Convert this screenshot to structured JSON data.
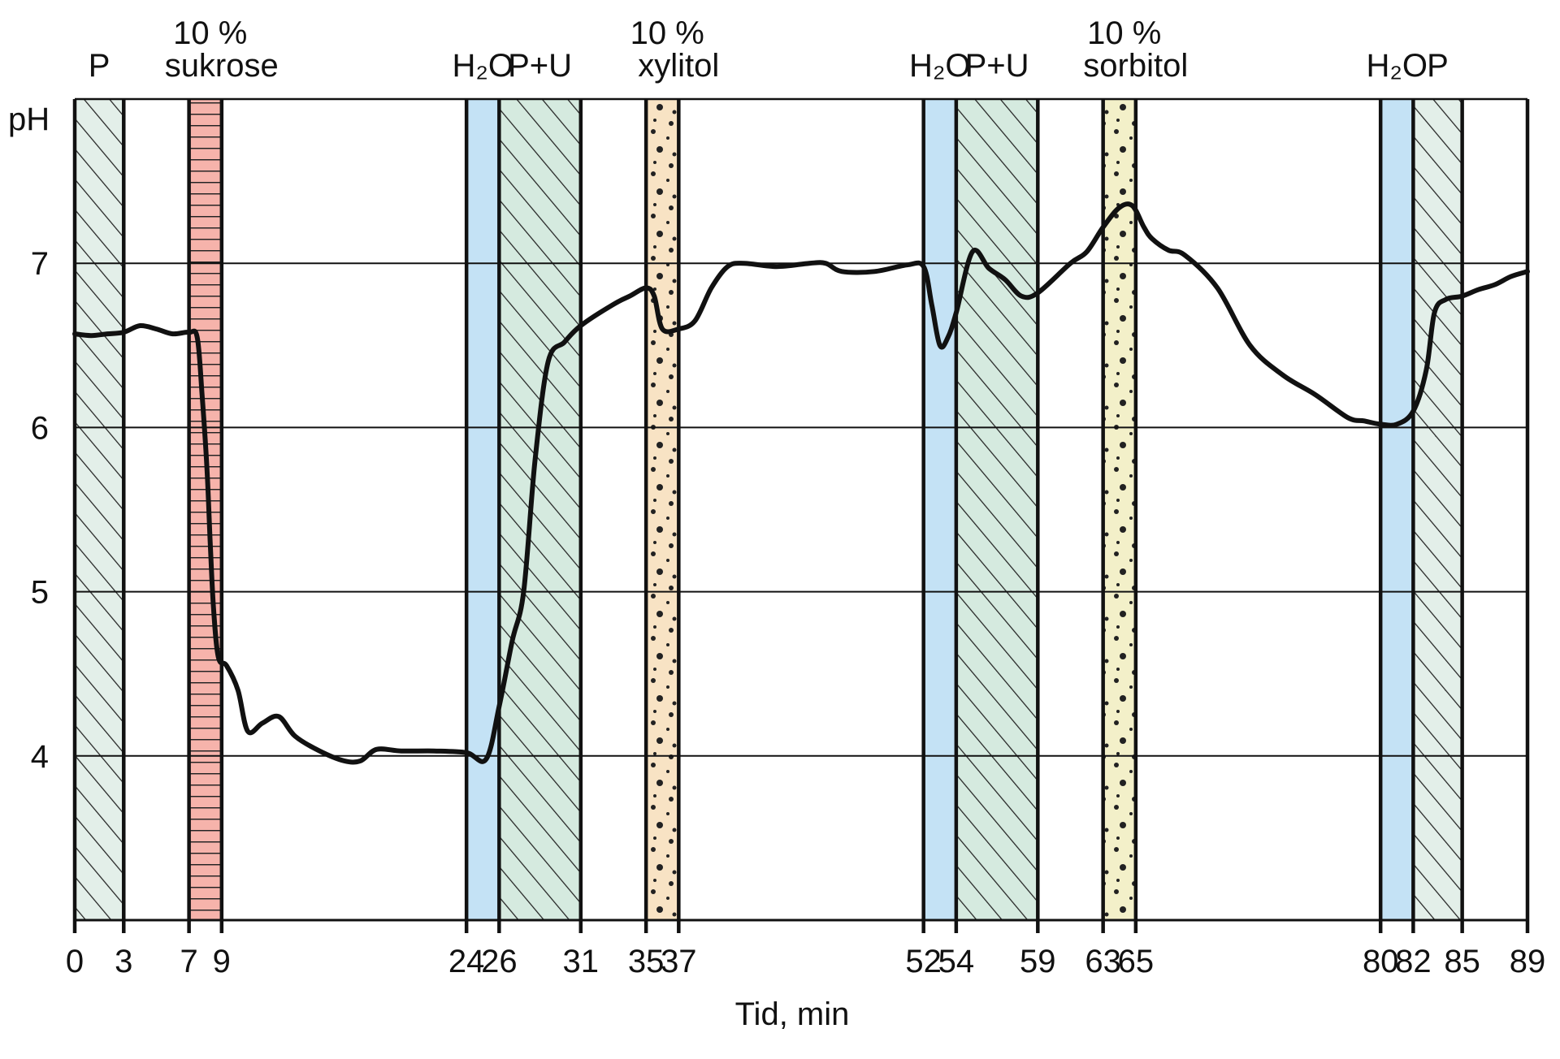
{
  "chart_data": {
    "type": "line",
    "ylabel": "pH",
    "xlabel": "Tid, min",
    "xlim": [
      0,
      89
    ],
    "ylim": [
      3,
      8
    ],
    "yticks": [
      4,
      5,
      6,
      7
    ],
    "xticks": [
      0,
      3,
      7,
      9,
      24,
      26,
      31,
      35,
      37,
      52,
      54,
      59,
      63,
      65,
      80,
      82,
      85,
      89
    ],
    "grid": true,
    "bands": [
      {
        "start": 0,
        "end": 3,
        "kind": "P",
        "color": "#e3efe9",
        "pattern": "hatch",
        "label": "P"
      },
      {
        "start": 7,
        "end": 9,
        "kind": "sucrose",
        "color": "#f6b3ab",
        "pattern": "hlines",
        "label": "10 %",
        "label2": "sukrose"
      },
      {
        "start": 24,
        "end": 26,
        "kind": "water",
        "color": "#c4e2f5",
        "pattern": "none",
        "label": "H₂O"
      },
      {
        "start": 26,
        "end": 31,
        "kind": "PU",
        "color": "#d5eadf",
        "pattern": "hatch",
        "label": "P+U"
      },
      {
        "start": 35,
        "end": 37,
        "kind": "xylitol",
        "color": "#f8e3c4",
        "pattern": "dots",
        "label": "10 %",
        "label2": "xylitol"
      },
      {
        "start": 52,
        "end": 54,
        "kind": "water",
        "color": "#c4e2f5",
        "pattern": "none",
        "label": "H₂O"
      },
      {
        "start": 54,
        "end": 59,
        "kind": "PU",
        "color": "#d5eadf",
        "pattern": "hatch",
        "label": "P+U"
      },
      {
        "start": 63,
        "end": 65,
        "kind": "sorbitol",
        "color": "#f3f0c9",
        "pattern": "dots",
        "label": "10 %",
        "label2": "sorbitol"
      },
      {
        "start": 80,
        "end": 82,
        "kind": "water",
        "color": "#c4e2f5",
        "pattern": "none",
        "label": "H₂O"
      },
      {
        "start": 82,
        "end": 85,
        "kind": "P",
        "color": "#e3efe9",
        "pattern": "hatch",
        "label": "P"
      }
    ],
    "series": [
      {
        "color": "#111111",
        "points": [
          [
            0,
            6.57
          ],
          [
            1,
            6.56
          ],
          [
            2,
            6.57
          ],
          [
            3,
            6.58
          ],
          [
            4,
            6.62
          ],
          [
            5,
            6.6
          ],
          [
            6,
            6.57
          ],
          [
            7,
            6.58
          ],
          [
            7.5,
            6.55
          ],
          [
            7.8,
            6.2
          ],
          [
            8.1,
            5.75
          ],
          [
            8.3,
            5.3
          ],
          [
            8.5,
            4.9
          ],
          [
            8.8,
            4.6
          ],
          [
            9.3,
            4.55
          ],
          [
            10,
            4.4
          ],
          [
            10.6,
            4.15
          ],
          [
            11.5,
            4.2
          ],
          [
            12.5,
            4.24
          ],
          [
            13.5,
            4.12
          ],
          [
            15,
            4.03
          ],
          [
            16.5,
            3.97
          ],
          [
            17.5,
            3.97
          ],
          [
            18.5,
            4.04
          ],
          [
            20,
            4.03
          ],
          [
            22,
            4.03
          ],
          [
            24,
            4.02
          ],
          [
            25.2,
            3.98
          ],
          [
            26,
            4.3
          ],
          [
            26.8,
            4.7
          ],
          [
            27.5,
            5.0
          ],
          [
            28.2,
            5.8
          ],
          [
            29,
            6.4
          ],
          [
            30,
            6.52
          ],
          [
            31,
            6.62
          ],
          [
            33,
            6.75
          ],
          [
            34,
            6.8
          ],
          [
            35,
            6.85
          ],
          [
            35.5,
            6.8
          ],
          [
            36,
            6.6
          ],
          [
            37,
            6.6
          ],
          [
            38,
            6.65
          ],
          [
            39,
            6.85
          ],
          [
            40,
            6.98
          ],
          [
            41,
            7.0
          ],
          [
            43,
            6.98
          ],
          [
            45,
            7.0
          ],
          [
            46,
            7.0
          ],
          [
            47,
            6.95
          ],
          [
            49,
            6.95
          ],
          [
            51,
            6.99
          ],
          [
            52,
            6.98
          ],
          [
            52.5,
            6.75
          ],
          [
            53,
            6.5
          ],
          [
            53.5,
            6.55
          ],
          [
            54,
            6.7
          ],
          [
            55,
            7.07
          ],
          [
            56,
            6.97
          ],
          [
            57,
            6.9
          ],
          [
            58,
            6.8
          ],
          [
            59,
            6.82
          ],
          [
            61,
            7.0
          ],
          [
            62,
            7.07
          ],
          [
            63,
            7.22
          ],
          [
            64,
            7.34
          ],
          [
            64.8,
            7.35
          ],
          [
            65.5,
            7.22
          ],
          [
            66,
            7.15
          ],
          [
            67,
            7.08
          ],
          [
            68,
            7.05
          ],
          [
            70,
            6.85
          ],
          [
            72,
            6.5
          ],
          [
            74,
            6.32
          ],
          [
            76,
            6.2
          ],
          [
            78,
            6.06
          ],
          [
            79,
            6.04
          ],
          [
            80,
            6.02
          ],
          [
            81,
            6.02
          ],
          [
            82,
            6.1
          ],
          [
            82.8,
            6.35
          ],
          [
            83.3,
            6.7
          ],
          [
            84,
            6.78
          ],
          [
            85,
            6.8
          ],
          [
            86,
            6.84
          ],
          [
            87,
            6.87
          ],
          [
            88,
            6.92
          ],
          [
            89,
            6.95
          ]
        ]
      }
    ]
  }
}
